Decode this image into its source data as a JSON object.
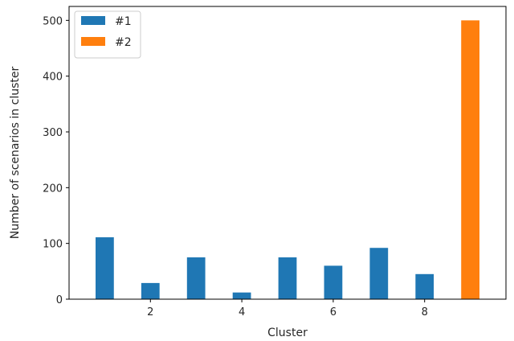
{
  "chart_data": {
    "type": "bar",
    "title": "",
    "xlabel": "Cluster",
    "ylabel": "Number of scenarios in cluster",
    "xlim": [
      0.22,
      9.78
    ],
    "ylim": [
      0,
      525
    ],
    "xticks": [
      2,
      4,
      6,
      8
    ],
    "yticks": [
      0,
      100,
      200,
      300,
      400,
      500
    ],
    "bar_width": 0.4,
    "grid": false,
    "legend_position": "top-left",
    "series": [
      {
        "name": "#1",
        "color": "#1f77b4",
        "x": [
          1,
          2,
          3,
          4,
          5,
          6,
          7,
          8
        ],
        "values": [
          111,
          29,
          75,
          12,
          75,
          60,
          92,
          45
        ]
      },
      {
        "name": "#2",
        "color": "#ff7f0e",
        "x": [
          9
        ],
        "values": [
          500
        ]
      }
    ]
  }
}
